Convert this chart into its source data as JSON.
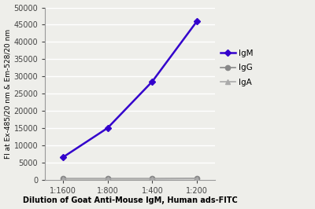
{
  "x_labels": [
    "1:1600",
    "1:800",
    "1:400",
    "1:200"
  ],
  "x_values": [
    0,
    1,
    2,
    3
  ],
  "IgM_values": [
    6500,
    15000,
    28500,
    46000
  ],
  "IgG_values": [
    300,
    300,
    300,
    350
  ],
  "IgA_values": [
    200,
    200,
    200,
    250
  ],
  "IgM_color": "#3300cc",
  "IgG_color": "#888888",
  "IgA_color": "#aaaaaa",
  "IgM_marker": "D",
  "IgG_marker": "o",
  "IgA_marker": "^",
  "ylabel": "FI at Ex-485/20 nm & Em-528/20 nm",
  "xlabel": "Dilution of Goat Anti-Mouse IgM, Human ads-FITC",
  "ylim": [
    0,
    50000
  ],
  "yticks": [
    0,
    5000,
    10000,
    15000,
    20000,
    25000,
    30000,
    35000,
    40000,
    45000,
    50000
  ],
  "ytick_labels": [
    "0",
    "5000",
    "10000",
    "15000",
    "20000",
    "25000",
    "30000",
    "35000",
    "40000",
    "45000",
    "50000"
  ],
  "background_color": "#eeeeea",
  "plot_bg_color": "#eeeeea",
  "grid_color": "#ffffff",
  "legend_labels": [
    "IgM",
    "IgG",
    "IgA"
  ]
}
